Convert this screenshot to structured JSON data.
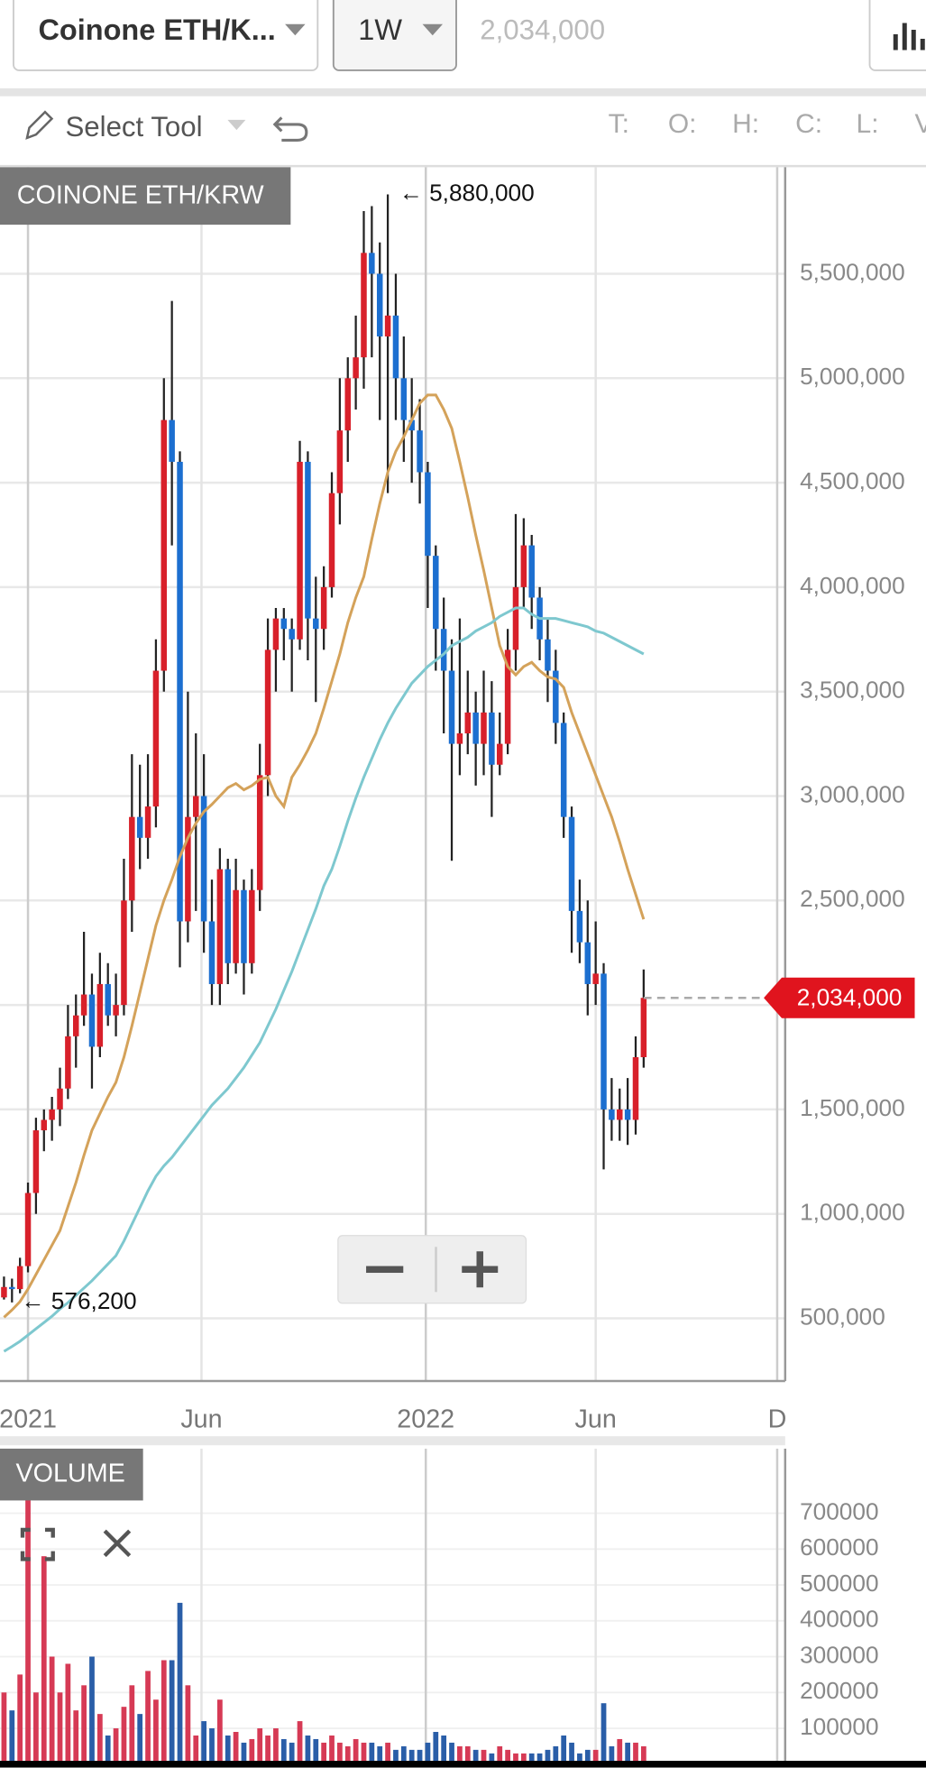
{
  "toolbar": {
    "symbol": "Coinone ETH/K...",
    "interval": "1W",
    "price": "2,034,000",
    "tool": "Select Tool",
    "ohlc_labels": [
      "T:",
      "O:",
      "H:",
      "C:",
      "L:",
      "V"
    ]
  },
  "chart_data": [
    {
      "type": "candlestick",
      "title": "COINONE ETH/KRW",
      "up_color": "#d8202a",
      "down_color": "#1c6fd0",
      "grid": true,
      "x": [
        0,
        1,
        2,
        3,
        4,
        5,
        6,
        7,
        8,
        9,
        10,
        11,
        12,
        13,
        14,
        15,
        16,
        17,
        18,
        19,
        20,
        21,
        22,
        23,
        24,
        25,
        26,
        27,
        28,
        29,
        30,
        31,
        32,
        33,
        34,
        35,
        36,
        37,
        38,
        39,
        40,
        41,
        42,
        43,
        44,
        45,
        46,
        47,
        48,
        49,
        50,
        51,
        52,
        53,
        54,
        55,
        56,
        57,
        58,
        59,
        60,
        61,
        62,
        63,
        64,
        65,
        66,
        67,
        68,
        69,
        70,
        71,
        72,
        73,
        74,
        75,
        76,
        77,
        78,
        79,
        80
      ],
      "open": [
        600000,
        650000,
        640000,
        750000,
        1100000,
        1400000,
        1450000,
        1500000,
        1600000,
        1850000,
        1950000,
        2050000,
        1800000,
        2100000,
        1950000,
        2000000,
        2500000,
        2900000,
        2800000,
        2950000,
        3600000,
        4800000,
        4600000,
        2400000,
        2900000,
        3000000,
        2400000,
        2100000,
        2650000,
        2200000,
        2550000,
        2200000,
        2550000,
        3100000,
        3700000,
        3850000,
        3800000,
        3750000,
        4600000,
        3850000,
        3800000,
        4000000,
        4450000,
        4750000,
        5000000,
        5100000,
        5600000,
        5500000,
        5200000,
        5300000,
        5000000,
        4800000,
        4750000,
        4550000,
        4150000,
        3800000,
        3600000,
        3250000,
        3300000,
        3400000,
        3250000,
        3400000,
        3150000,
        3250000,
        3700000,
        4000000,
        4200000,
        3950000,
        3750000,
        3600000,
        3350000,
        2900000,
        2450000,
        2300000,
        2100000,
        2150000,
        1500000,
        1450000,
        1500000,
        1450000,
        1750000
      ],
      "high": [
        700000,
        690000,
        790000,
        1150000,
        1460000,
        1500000,
        1560000,
        1700000,
        2000000,
        2050000,
        2350000,
        2150000,
        2250000,
        2200000,
        2150000,
        2700000,
        3200000,
        3150000,
        3200000,
        3750000,
        5000000,
        5370000,
        4650000,
        3500000,
        3300000,
        3200000,
        2600000,
        2750000,
        2700000,
        2700000,
        2600000,
        2650000,
        3250000,
        3850000,
        3900000,
        3900000,
        3850000,
        4700000,
        4650000,
        4050000,
        4100000,
        4550000,
        5000000,
        5100000,
        5300000,
        5800000,
        5824000,
        5650000,
        5880000,
        5500000,
        5200000,
        5000000,
        4900000,
        4600000,
        4200000,
        3950000,
        3750000,
        3850000,
        3600000,
        3500000,
        3600000,
        3550000,
        3400000,
        3800000,
        4350000,
        4330000,
        4250000,
        4000000,
        3850000,
        3700000,
        3400000,
        2950000,
        2600000,
        2500000,
        2400000,
        2200000,
        1650000,
        1600000,
        1650000,
        1850000,
        2170000
      ],
      "low": [
        590000,
        576200,
        620000,
        720000,
        1000000,
        1300000,
        1350000,
        1420000,
        1550000,
        1700000,
        1900000,
        1600000,
        1750000,
        1900000,
        1850000,
        1950000,
        2350000,
        2650000,
        2700000,
        2850000,
        3500000,
        4200000,
        2180000,
        2300000,
        2450000,
        2250000,
        2000000,
        2000000,
        2100000,
        2150000,
        2050000,
        2150000,
        2450000,
        3000000,
        3500000,
        3650000,
        3500000,
        3700000,
        3650000,
        3450000,
        3700000,
        3950000,
        4300000,
        4600000,
        4850000,
        4950000,
        5100000,
        4800000,
        4450000,
        4800000,
        4600000,
        4500000,
        4400000,
        3900000,
        3600000,
        3300000,
        2690000,
        3100000,
        3200000,
        3050000,
        3100000,
        2900000,
        3100000,
        3200000,
        3600000,
        3900000,
        3800000,
        3650000,
        3450000,
        3250000,
        2800000,
        2250000,
        2200000,
        1950000,
        2000000,
        1213000,
        1350000,
        1350000,
        1330000,
        1380000,
        1700000
      ],
      "close": [
        650000,
        640000,
        750000,
        1100000,
        1400000,
        1450000,
        1500000,
        1600000,
        1850000,
        1950000,
        2050000,
        1800000,
        2100000,
        1950000,
        2000000,
        2500000,
        2900000,
        2800000,
        2950000,
        3600000,
        4800000,
        4600000,
        2400000,
        2900000,
        3000000,
        2400000,
        2100000,
        2650000,
        2200000,
        2550000,
        2200000,
        2550000,
        3100000,
        3700000,
        3850000,
        3800000,
        3750000,
        4600000,
        3850000,
        3800000,
        4000000,
        4450000,
        4750000,
        5000000,
        5100000,
        5600000,
        5500000,
        5200000,
        5300000,
        5000000,
        4800000,
        4750000,
        4550000,
        4150000,
        3800000,
        3600000,
        3250000,
        3300000,
        3400000,
        3250000,
        3400000,
        3150000,
        3250000,
        3700000,
        4000000,
        4200000,
        3950000,
        3750000,
        3600000,
        3350000,
        2900000,
        2450000,
        2300000,
        2100000,
        2150000,
        1500000,
        1450000,
        1500000,
        1450000,
        1750000,
        2034000
      ],
      "series": [
        {
          "color": "#d4a25a",
          "values": [
            505000,
            540000,
            580000,
            640000,
            710000,
            780000,
            850000,
            920000,
            1035000,
            1150000,
            1280000,
            1400000,
            1480000,
            1560000,
            1630000,
            1750000,
            1900000,
            2060000,
            2220000,
            2380000,
            2500000,
            2600000,
            2710000,
            2800000,
            2870000,
            2925000,
            2960000,
            3000000,
            3040000,
            3060000,
            3030000,
            3050000,
            3080000,
            3090000,
            3000000,
            2950000,
            3090000,
            3150000,
            3220000,
            3300000,
            3420000,
            3550000,
            3680000,
            3830000,
            3950000,
            4050000,
            4230000,
            4400000,
            4550000,
            4650000,
            4720000,
            4800000,
            4880000,
            4920000,
            4920000,
            4850000,
            4760000,
            4600000,
            4430000,
            4250000,
            4080000,
            3900000,
            3720000,
            3620000,
            3580000,
            3620000,
            3640000,
            3600000,
            3570000,
            3560000,
            3520000,
            3400000,
            3300000,
            3200000,
            3100000,
            3000000,
            2900000,
            2780000,
            2650000,
            2530000,
            2410000
          ]
        },
        {
          "color": "#7ec8cf",
          "values": [
            342000,
            365000,
            390000,
            420000,
            450000,
            480000,
            510000,
            545000,
            575000,
            610000,
            645000,
            680000,
            720000,
            760000,
            800000,
            870000,
            950000,
            1030000,
            1110000,
            1180000,
            1230000,
            1270000,
            1320000,
            1370000,
            1420000,
            1470000,
            1520000,
            1560000,
            1600000,
            1650000,
            1700000,
            1760000,
            1820000,
            1900000,
            1980000,
            2070000,
            2160000,
            2260000,
            2360000,
            2460000,
            2570000,
            2650000,
            2760000,
            2880000,
            2990000,
            3090000,
            3180000,
            3270000,
            3350000,
            3420000,
            3480000,
            3540000,
            3580000,
            3620000,
            3650000,
            3680000,
            3720000,
            3740000,
            3760000,
            3790000,
            3810000,
            3830000,
            3860000,
            3880000,
            3900000,
            3900000,
            3870000,
            3850000,
            3850000,
            3850000,
            3840000,
            3830000,
            3820000,
            3810000,
            3790000,
            3780000,
            3760000,
            3740000,
            3720000,
            3700000,
            3680000
          ]
        }
      ],
      "annotations": [
        {
          "text": "← 5,880,000"
        },
        {
          "text": "← 576,200"
        }
      ],
      "last_price": {
        "value": 2034000,
        "label": "2,034,000"
      },
      "xlim": [
        -0.5,
        97.7
      ],
      "xticks": [
        {
          "value": 3,
          "label": "2021"
        },
        {
          "value": 24.7,
          "label": "Jun"
        },
        {
          "value": 52.75,
          "label": "2022"
        },
        {
          "value": 74,
          "label": "Jun"
        },
        {
          "value": 96.7,
          "label": "D"
        }
      ],
      "ylim": [
        200000,
        6010000
      ],
      "yticks": [
        {
          "value": 500000,
          "label": "500,000"
        },
        {
          "value": 1000000,
          "label": "1,000,000"
        },
        {
          "value": 1500000,
          "label": "1,500,000"
        },
        {
          "value": 2000000,
          "label": "2,000,000"
        },
        {
          "value": 2500000,
          "label": "2,500,000"
        },
        {
          "value": 3000000,
          "label": "3,000,000"
        },
        {
          "value": 3500000,
          "label": "3,500,000"
        },
        {
          "value": 4000000,
          "label": "4,000,000"
        },
        {
          "value": 4500000,
          "label": "4,500,000"
        },
        {
          "value": 5000000,
          "label": "5,000,000"
        },
        {
          "value": 5500000,
          "label": "5,500,000"
        }
      ]
    },
    {
      "type": "bar",
      "title": "VOLUME",
      "up_color": "#d63a55",
      "down_color": "#2a5ea8",
      "grid": true,
      "x": [
        0,
        1,
        2,
        3,
        4,
        5,
        6,
        7,
        8,
        9,
        10,
        11,
        12,
        13,
        14,
        15,
        16,
        17,
        18,
        19,
        20,
        21,
        22,
        23,
        24,
        25,
        26,
        27,
        28,
        29,
        30,
        31,
        32,
        33,
        34,
        35,
        36,
        37,
        38,
        39,
        40,
        41,
        42,
        43,
        44,
        45,
        46,
        47,
        48,
        49,
        50,
        51,
        52,
        53,
        54,
        55,
        56,
        57,
        58,
        59,
        60,
        61,
        62,
        63,
        64,
        65,
        66,
        67,
        68,
        69,
        70,
        71,
        72,
        73,
        74,
        75,
        76,
        77,
        78,
        79,
        80
      ],
      "values": [
        200000,
        150000,
        250000,
        760000,
        200000,
        580000,
        300000,
        200000,
        280000,
        150000,
        220000,
        300000,
        140000,
        80000,
        100000,
        160000,
        220000,
        140000,
        260000,
        180000,
        290000,
        290000,
        450000,
        220000,
        80000,
        120000,
        100000,
        180000,
        80000,
        90000,
        60000,
        70000,
        100000,
        80000,
        100000,
        70000,
        60000,
        120000,
        80000,
        70000,
        60000,
        80000,
        60000,
        50000,
        70000,
        60000,
        60000,
        50000,
        60000,
        40000,
        50000,
        40000,
        40000,
        60000,
        90000,
        80000,
        60000,
        50000,
        50000,
        40000,
        40000,
        30000,
        50000,
        40000,
        30000,
        30000,
        30000,
        30000,
        40000,
        50000,
        80000,
        60000,
        30000,
        40000,
        40000,
        170000,
        50000,
        70000,
        60000,
        60000,
        50000
      ],
      "ylim": [
        0,
        880000
      ],
      "yticks": [
        100000,
        200000,
        300000,
        400000,
        500000,
        600000,
        700000
      ]
    }
  ]
}
